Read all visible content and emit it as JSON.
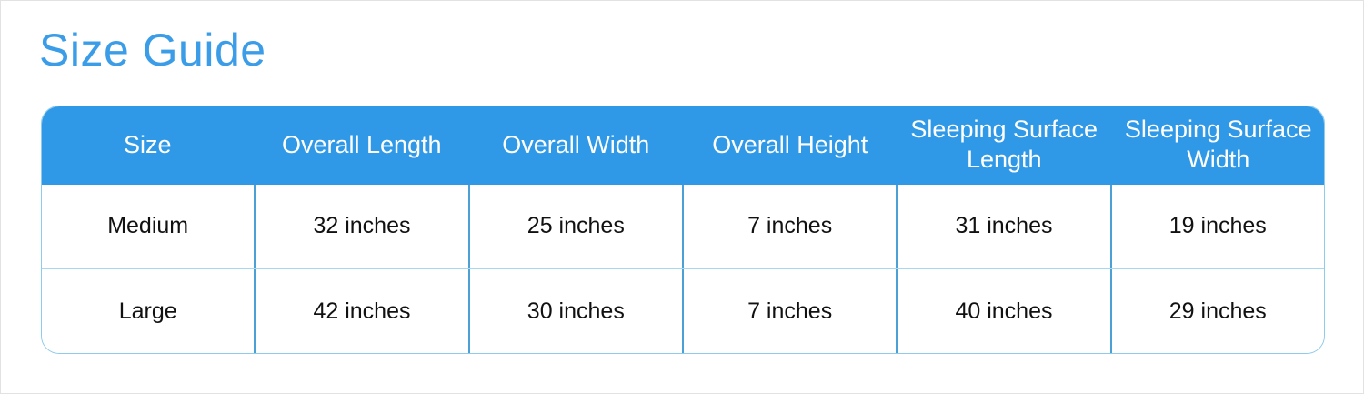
{
  "page": {
    "title": "Size Guide"
  },
  "colors": {
    "title_blue": "#3b9de8",
    "header_background": "#2f99e8",
    "header_text": "#ffffff",
    "vertical_divider": "#4ba0d6",
    "horizontal_divider": "#a6d8f2",
    "table_border": "#8ecbec",
    "body_text": "#111111"
  },
  "table": {
    "columns": [
      "Size",
      "Overall Length",
      "Overall Width",
      "Overall Height",
      "Sleeping Surface Length",
      "Sleeping Surface Width"
    ],
    "rows": [
      {
        "size": "Medium",
        "overall_length": "32 inches",
        "overall_width": "25 inches",
        "overall_height": "7 inches",
        "sleeping_surface_length": "31 inches",
        "sleeping_surface_width": "19 inches"
      },
      {
        "size": "Large",
        "overall_length": "42 inches",
        "overall_width": "30 inches",
        "overall_height": "7 inches",
        "sleeping_surface_length": "40 inches",
        "sleeping_surface_width": "29 inches"
      }
    ]
  }
}
